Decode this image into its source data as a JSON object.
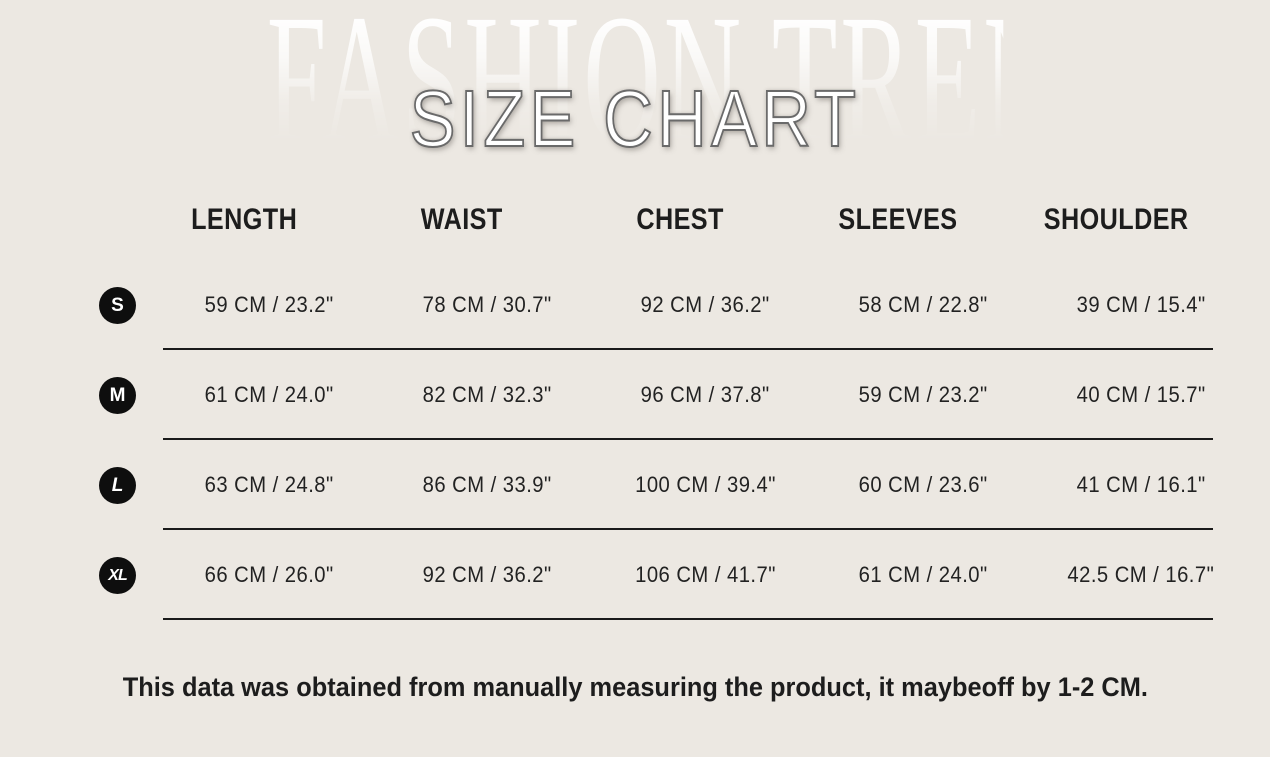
{
  "header": {
    "watermark": "FASHION TRENDS",
    "title": "SIZE CHART"
  },
  "chart_data": {
    "type": "table",
    "title": "SIZE CHART",
    "watermark": "FASHION TRENDS",
    "columns": [
      "LENGTH",
      "WAIST",
      "CHEST",
      "SLEEVES",
      "SHOULDER"
    ],
    "row_labels": [
      "S",
      "M",
      "L",
      "XL"
    ],
    "units": "CM / inches",
    "rows": [
      {
        "size": "S",
        "cells": [
          "59 CM / 23.2\"",
          "78 CM / 30.7\"",
          "92 CM / 36.2\"",
          "58 CM / 22.8\"",
          "39 CM / 15.4\""
        ]
      },
      {
        "size": "M",
        "cells": [
          "61 CM / 24.0\"",
          "82 CM / 32.3\"",
          "96 CM / 37.8\"",
          "59 CM / 23.2\"",
          "40 CM / 15.7\""
        ]
      },
      {
        "size": "L",
        "cells": [
          "63 CM / 24.8\"",
          "86 CM / 33.9\"",
          "100 CM / 39.4\"",
          "60 CM / 23.6\"",
          "41 CM / 16.1\""
        ]
      },
      {
        "size": "XL",
        "cells": [
          "66 CM / 26.0\"",
          "92 CM / 36.2\"",
          "106 CM / 41.7\"",
          "61 CM / 24.0\"",
          "42.5 CM / 16.7\""
        ]
      }
    ],
    "note": "This data was obtained from manually measuring the product, it maybeoff by 1-2 CM."
  },
  "footer": {
    "note": "This data was obtained from manually measuring the product, it maybeoff by 1-2 CM."
  },
  "colors": {
    "background": "#ece8e2",
    "text": "#1d1d1d",
    "badge_background": "#0e0e0e",
    "badge_text": "#ffffff",
    "divider": "#1a1a1a",
    "title_fill": "#ffffff",
    "title_outline": "#6a6a6a"
  }
}
